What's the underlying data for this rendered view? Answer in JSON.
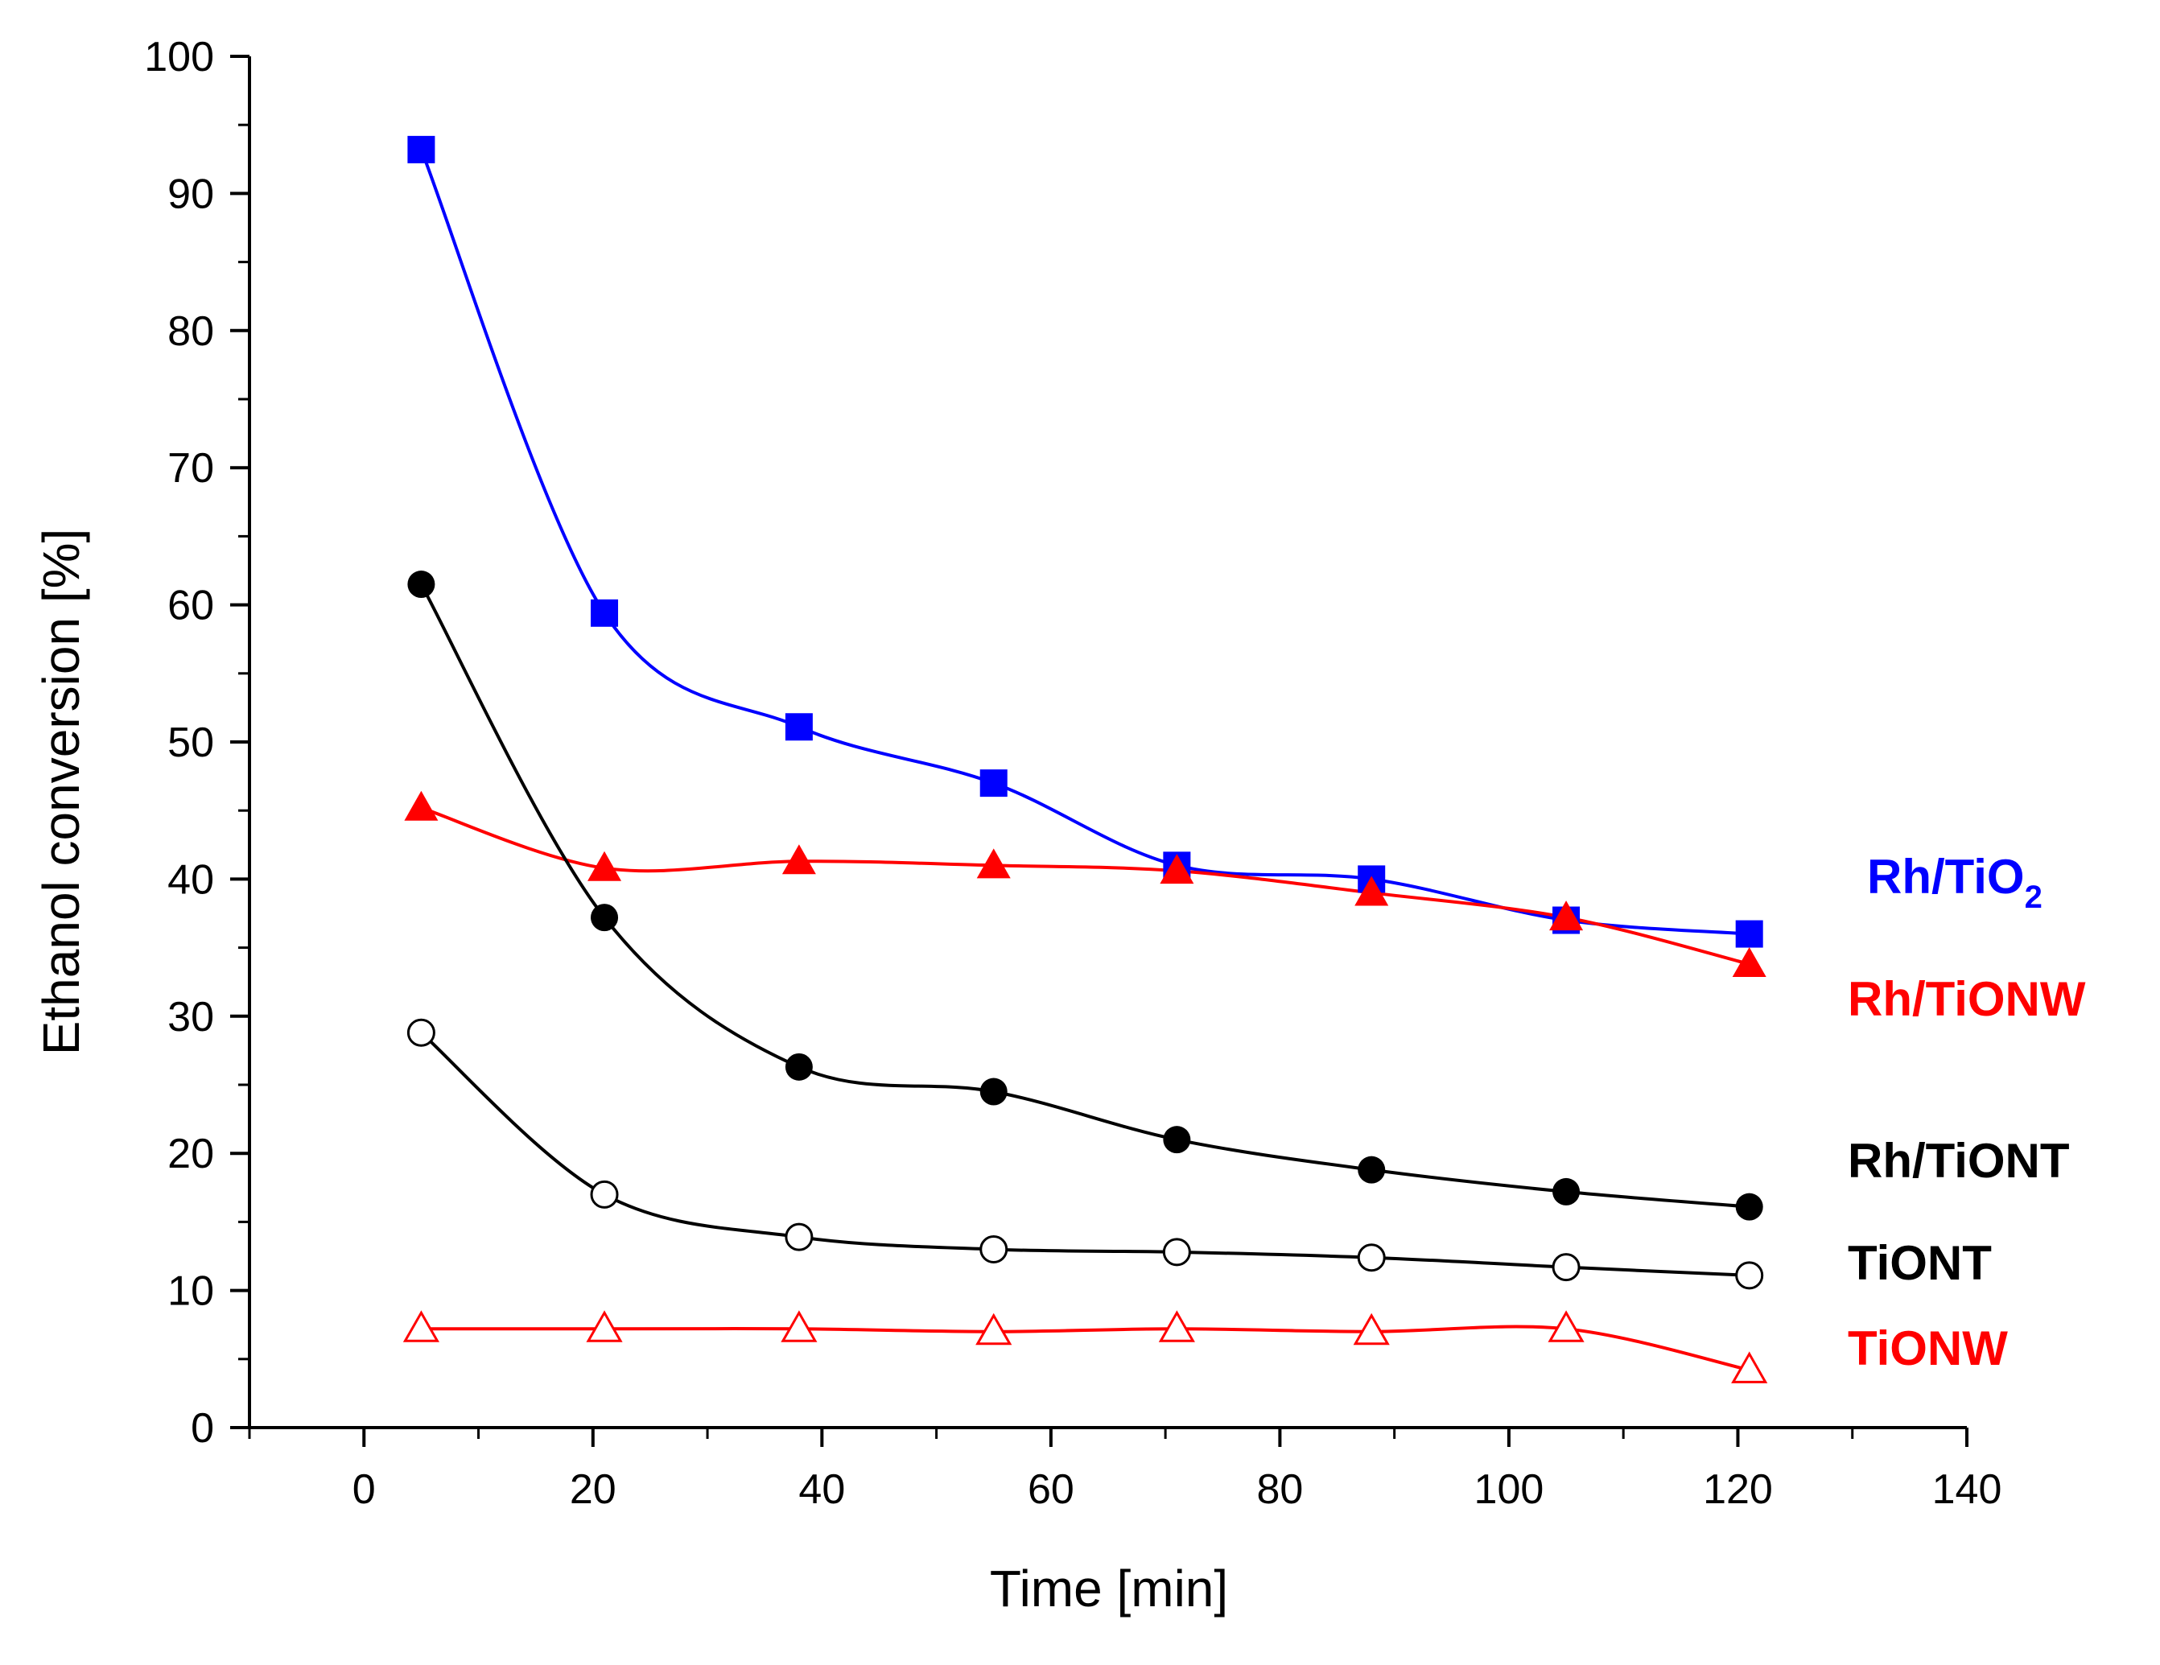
{
  "chart_data": {
    "type": "line",
    "title": "",
    "xlabel": "Time [min]",
    "ylabel": "Ethanol conversion [%]",
    "xlim": [
      -10,
      140
    ],
    "ylim": [
      0,
      100
    ],
    "x_major_ticks": [
      0,
      20,
      40,
      60,
      80,
      100,
      120,
      140
    ],
    "y_major_ticks": [
      0,
      10,
      20,
      30,
      40,
      50,
      60,
      70,
      80,
      90,
      100
    ],
    "x_tick_labels": [
      "0",
      "20",
      "40",
      "60",
      "80",
      "100",
      "120",
      "140"
    ],
    "y_tick_labels": [
      "0",
      "10",
      "20",
      "30",
      "40",
      "50",
      "60",
      "70",
      "80",
      "90",
      "100"
    ],
    "grid": false,
    "legend": "series labels at right end of curves",
    "x": [
      5,
      21,
      38,
      55,
      71,
      88,
      105,
      121
    ],
    "series": [
      {
        "name": "Rh/TiO2",
        "label_main": "Rh/TiO",
        "label_sub": "2",
        "color": "#0000ff",
        "marker": "filled-square",
        "values": [
          93.2,
          59.4,
          51.1,
          47.0,
          41.0,
          40.0,
          37.0,
          36.0
        ]
      },
      {
        "name": "Rh/TiONW",
        "label_main": "Rh/TiONW",
        "color": "#ff0000",
        "marker": "filled-triangle",
        "values": [
          45.2,
          40.8,
          41.3,
          41.0,
          40.6,
          39.0,
          37.2,
          33.8
        ]
      },
      {
        "name": "Rh/TiONT",
        "label_main": "Rh/TiONT",
        "color": "#000000",
        "marker": "filled-circle",
        "values": [
          61.5,
          37.2,
          26.3,
          24.5,
          21.0,
          18.8,
          17.2,
          16.1
        ]
      },
      {
        "name": "TiONT",
        "label_main": "TiONT",
        "color": "#000000",
        "marker": "open-circle",
        "values": [
          28.8,
          17.0,
          13.9,
          13.0,
          12.8,
          12.4,
          11.7,
          11.1
        ]
      },
      {
        "name": "TiONW",
        "label_main": "TiONW",
        "color": "#ff0000",
        "marker": "open-triangle",
        "values": [
          7.2,
          7.2,
          7.2,
          7.0,
          7.2,
          7.0,
          7.2,
          4.2
        ]
      }
    ]
  }
}
